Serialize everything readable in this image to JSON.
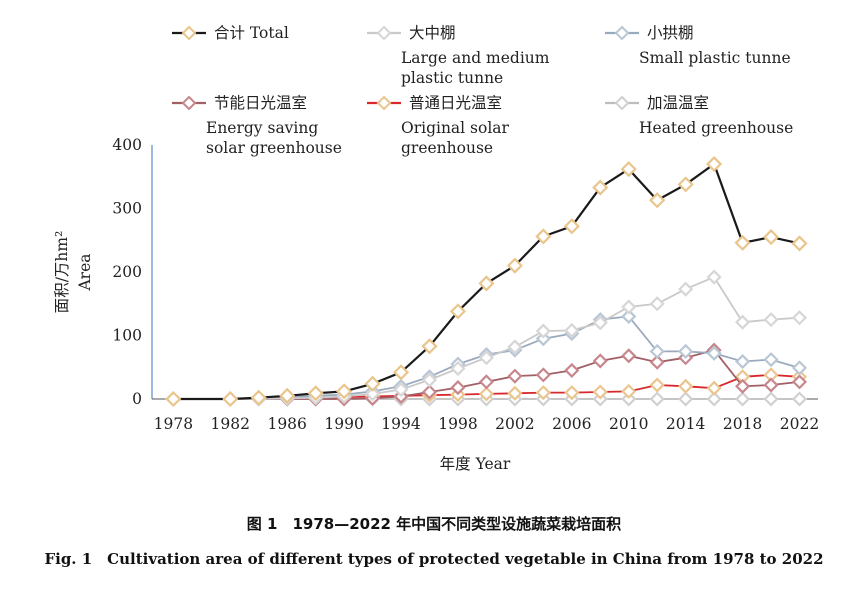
{
  "chart_data": {
    "type": "line",
    "ylim": [
      0,
      400
    ],
    "yticks": [
      0,
      100,
      200,
      300,
      400
    ],
    "xticks": [
      1978,
      1982,
      1986,
      1990,
      1994,
      1998,
      2002,
      2006,
      2010,
      2014,
      2018,
      2022
    ],
    "xlim": [
      1976.5,
      2023.3
    ],
    "ylabel_cn": "面积/万hm²",
    "ylabel_en": "Area",
    "xlabel": "年度 Year",
    "legend_placement": "top",
    "series": [
      {
        "name_cn": "合计",
        "name_en": "Total",
        "line_color": "#1a1a1a",
        "marker_color": "#e9c58c",
        "x": [
          1978,
          1982,
          1984,
          1986,
          1988,
          1990,
          1992,
          1994,
          1996,
          1998,
          2000,
          2002,
          2004,
          2006,
          2008,
          2010,
          2012,
          2014,
          2016,
          2018,
          2020,
          2022
        ],
        "y": [
          0,
          0,
          2,
          5,
          9,
          12,
          24,
          42,
          83,
          138,
          182,
          210,
          256,
          272,
          333,
          362,
          313,
          338,
          370,
          246,
          255,
          245
        ]
      },
      {
        "name_cn": "大中棚",
        "name_en": "Large and medium plastic tunne",
        "line_color": "#c9c9c9",
        "marker_color": "#d6d6d6",
        "x": [
          1978,
          1982,
          1984,
          1986,
          1988,
          1990,
          1992,
          1994,
          1996,
          1998,
          2000,
          2002,
          2004,
          2006,
          2008,
          2010,
          2012,
          2014,
          2016,
          2018,
          2020,
          2022
        ],
        "y": [
          0,
          0,
          0,
          1,
          2,
          4,
          8,
          15,
          30,
          48,
          65,
          82,
          107,
          108,
          120,
          145,
          150,
          173,
          192,
          121,
          125,
          128
        ]
      },
      {
        "name_cn": "小拱棚",
        "name_en": "Small plastic tunne",
        "line_color": "#9aaabd",
        "marker_color": "#b9c6d4",
        "x": [
          1978,
          1982,
          1984,
          1986,
          1988,
          1990,
          1992,
          1994,
          1996,
          1998,
          2000,
          2002,
          2004,
          2006,
          2008,
          2010,
          2012,
          2014,
          2016,
          2018,
          2020,
          2022
        ],
        "y": [
          0,
          0,
          1,
          3,
          5,
          7,
          12,
          20,
          35,
          55,
          70,
          77,
          95,
          103,
          125,
          130,
          75,
          75,
          72,
          59,
          62,
          49
        ]
      },
      {
        "name_cn": "节能日光温室",
        "name_en": "Energy saving solar greenhouse",
        "line_color": "#a15f66",
        "marker_color": "#c7868c",
        "x": [
          1978,
          1982,
          1984,
          1986,
          1988,
          1990,
          1992,
          1994,
          1996,
          1998,
          2000,
          2002,
          2004,
          2006,
          2008,
          2010,
          2012,
          2014,
          2016,
          2018,
          2020,
          2022
        ],
        "y": [
          0,
          0,
          0,
          0,
          0,
          0,
          1,
          4,
          11,
          18,
          27,
          36,
          38,
          45,
          60,
          68,
          58,
          65,
          77,
          20,
          22,
          27
        ]
      },
      {
        "name_cn": "普通日光温室",
        "name_en": "Original solar greenhouse",
        "line_color": "#d9272e",
        "marker_color": "#eac58e",
        "x": [
          1978,
          1982,
          1984,
          1986,
          1988,
          1990,
          1992,
          1994,
          1996,
          1998,
          2000,
          2002,
          2004,
          2006,
          2008,
          2010,
          2012,
          2014,
          2016,
          2018,
          2020,
          2022
        ],
        "y": [
          0,
          0,
          1,
          1,
          2,
          3,
          4,
          5,
          6,
          7,
          8,
          9,
          10,
          10,
          11,
          12,
          22,
          20,
          17,
          35,
          38,
          35
        ]
      },
      {
        "name_cn": "加温温室",
        "name_en": "Heated greenhouse",
        "line_color": "#bdbdbd",
        "marker_color": "#d0d0d0",
        "x": [
          1978,
          1982,
          1984,
          1986,
          1988,
          1990,
          1992,
          1994,
          1996,
          1998,
          2000,
          2002,
          2004,
          2006,
          2008,
          2010,
          2012,
          2014,
          2016,
          2018,
          2020,
          2022
        ],
        "y": [
          0,
          0,
          0,
          0,
          0,
          0,
          0,
          0,
          0,
          0,
          0,
          0,
          0,
          0,
          0,
          0,
          0,
          0,
          0,
          0,
          0,
          0
        ]
      }
    ]
  },
  "caption": {
    "cn": "图 1　1978—2022 年中国不同类型设施蔬菜栽培面积",
    "en": "Fig. 1　Cultivation area of different types of protected vegetable in China from 1978 to 2022"
  }
}
